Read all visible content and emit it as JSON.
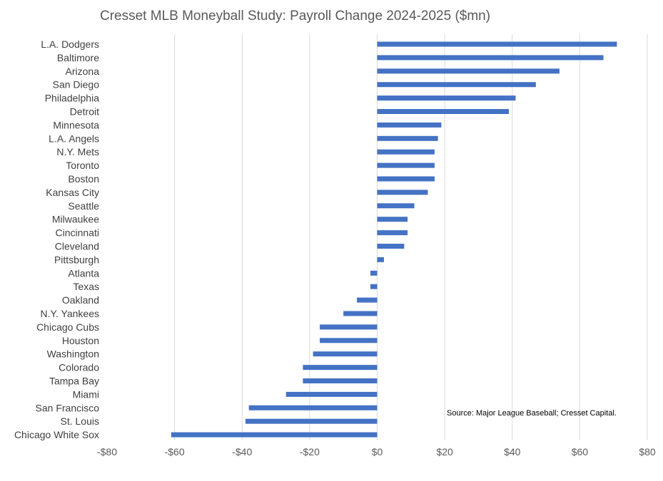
{
  "chart_data": {
    "type": "bar",
    "orientation": "horizontal",
    "title": "Cresset MLB Moneyball Study: Payroll Change 2024-2025 ($mn)",
    "xlabel": "",
    "ylabel": "",
    "xlim": [
      -80,
      80
    ],
    "x_ticks": [
      -80,
      -60,
      -40,
      -20,
      0,
      20,
      40,
      60,
      80
    ],
    "x_tick_labels": [
      "-$80",
      "-$60",
      "-$40",
      "-$20",
      "$0",
      "$20",
      "$40",
      "$60",
      "$80"
    ],
    "grid": "vertical",
    "legend": "none",
    "bar_color": "#4472C4",
    "categories": [
      "L.A. Dodgers",
      "Baltimore",
      "Arizona",
      "San Diego",
      "Philadelphia",
      "Detroit",
      "Minnesota",
      "L.A. Angels",
      "N.Y. Mets",
      "Toronto",
      "Boston",
      "Kansas City",
      "Seattle",
      "Milwaukee",
      "Cincinnati",
      "Cleveland",
      "Pittsburgh",
      "Atlanta",
      "Texas",
      "Oakland",
      "N.Y. Yankees",
      "Chicago Cubs",
      "Houston",
      "Washington",
      "Colorado",
      "Tampa Bay",
      "Miami",
      "San Francisco",
      "St. Louis",
      "Chicago White Sox"
    ],
    "values": [
      71,
      67,
      54,
      47,
      41,
      39,
      19,
      18,
      17,
      17,
      17,
      15,
      11,
      9,
      9,
      8,
      2,
      -2,
      -2,
      -6,
      -10,
      -17,
      -17,
      -19,
      -22,
      -22,
      -27,
      -38,
      -39,
      -61
    ],
    "annotations": [
      "Source: Major League Baseball; Cresset Capital."
    ]
  }
}
